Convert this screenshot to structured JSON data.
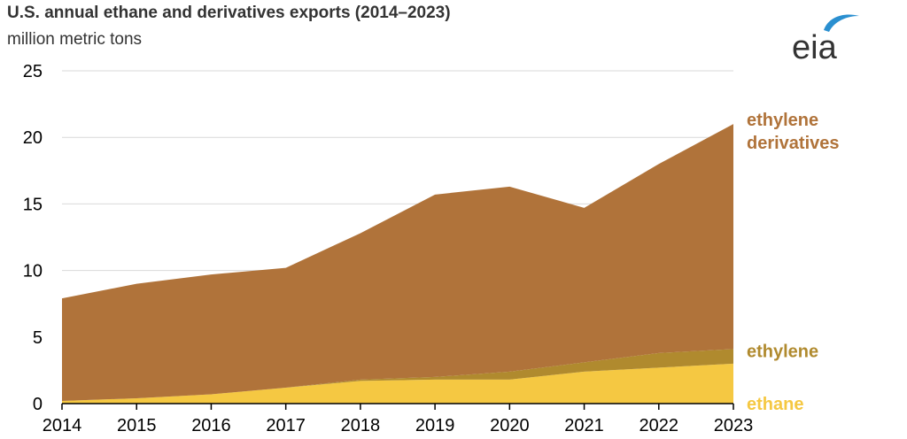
{
  "header": {
    "title": "U.S. annual ethane and derivatives exports (2014–2023)",
    "subtitle": "million metric tons",
    "logo_text": "eia"
  },
  "colors": {
    "ethane": "#f5c842",
    "ethylene": "#b08a2e",
    "ethylene_derivatives": "#b0733a",
    "grid": "#d9d9d9",
    "logo_swoosh": "#2a8fd0"
  },
  "chart_data": {
    "type": "area",
    "stacked": true,
    "title": "U.S. annual ethane and derivatives exports (2014–2023)",
    "ylabel": "million metric tons",
    "x": [
      2014,
      2015,
      2016,
      2017,
      2018,
      2019,
      2020,
      2021,
      2022,
      2023
    ],
    "ylim": [
      0,
      25
    ],
    "yticks": [
      0,
      5,
      10,
      15,
      20,
      25
    ],
    "grid": true,
    "series": [
      {
        "name": "ethane",
        "label_lines": [
          "ethane"
        ],
        "color": "#f5c842",
        "values": [
          0.2,
          0.4,
          0.7,
          1.2,
          1.7,
          1.8,
          1.8,
          2.4,
          2.7,
          3.0
        ]
      },
      {
        "name": "ethylene",
        "label_lines": [
          "ethylene"
        ],
        "color": "#b08a2e",
        "values": [
          0.0,
          0.0,
          0.0,
          0.0,
          0.1,
          0.2,
          0.6,
          0.7,
          1.1,
          1.1
        ]
      },
      {
        "name": "ethylene derivatives",
        "label_lines": [
          "ethylene",
          "derivatives"
        ],
        "color": "#b0733a",
        "values": [
          7.7,
          8.6,
          9.0,
          9.0,
          11.0,
          13.7,
          13.9,
          11.6,
          14.2,
          16.9
        ]
      }
    ]
  }
}
